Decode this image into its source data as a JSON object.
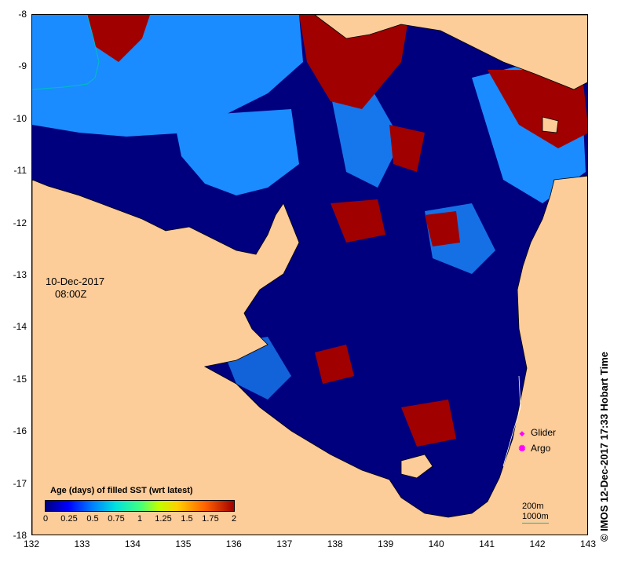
{
  "map": {
    "lat_labels": [
      "-8",
      "-9",
      "-10",
      "-11",
      "-12",
      "-13",
      "-14",
      "-15",
      "-16",
      "-17",
      "-18"
    ],
    "lon_labels": [
      "132",
      "133",
      "134",
      "135",
      "136",
      "137",
      "138",
      "139",
      "140",
      "141",
      "142",
      "143"
    ],
    "lat_range": [
      -18,
      -8
    ],
    "lon_range": [
      132,
      143
    ],
    "colors": {
      "land": "#fccc99",
      "age_0": "#00007f",
      "age_mid": "#1a8cff",
      "age_2": "#a00000",
      "contour_200m": "#ffffff",
      "contour_1000m": "#00c0c0"
    }
  },
  "date_label": {
    "date": "10-Dec-2017",
    "time": "08:00Z"
  },
  "legend": {
    "title": "Age (days) of filled SST (wrt latest)",
    "ticks": [
      "0",
      "0.25",
      "0.5",
      "0.75",
      "1",
      "1.25",
      "1.5",
      "1.75",
      "2"
    ]
  },
  "markers": {
    "glider_label": "Glider",
    "argo_label": "Argo",
    "glider_icon": "diamond-icon",
    "argo_icon": "circle-icon"
  },
  "contours": {
    "c200": "200m",
    "c1000": "1000m"
  },
  "credit": "© IMOS 12-Dec-2017 17:33 Hobart Time"
}
